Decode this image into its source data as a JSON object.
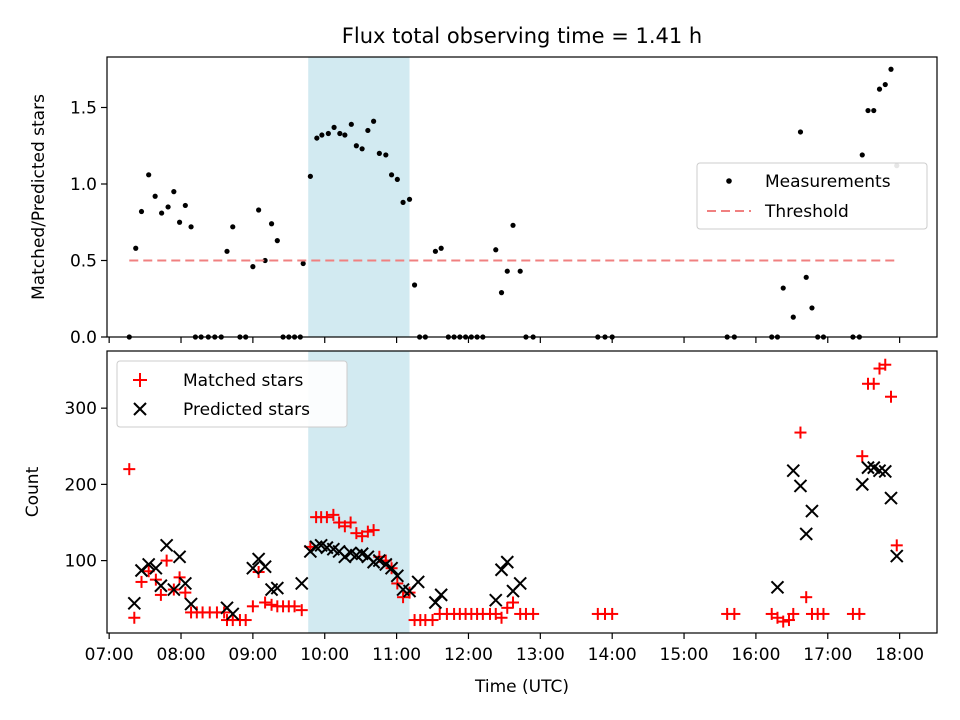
{
  "figure": {
    "title": "Flux total observing time = 1.41 h",
    "xlabel": "Time (UTC)",
    "xticks": [
      "07:00",
      "08:00",
      "09:00",
      "10:00",
      "11:00",
      "12:00",
      "13:00",
      "14:00",
      "15:00",
      "16:00",
      "17:00",
      "18:00"
    ],
    "highlight_span_hours": [
      9.77,
      11.18
    ],
    "highlight_color": "#add8e6"
  },
  "chart_data": [
    {
      "type": "scatter",
      "ylabel": "Matched/Predicted stars",
      "ylim": [
        0,
        1.83
      ],
      "yticks": [
        0.0,
        0.5,
        1.0,
        1.5
      ],
      "xlim_hours": [
        6.97,
        18.52
      ],
      "legend_placement": "center-right",
      "series": [
        {
          "name": "Measurements",
          "color": "#000000",
          "marker": "dot",
          "points": [
            [
              7.28,
              0.0
            ],
            [
              7.37,
              0.58
            ],
            [
              7.45,
              0.82
            ],
            [
              7.55,
              1.06
            ],
            [
              7.64,
              0.92
            ],
            [
              7.73,
              0.81
            ],
            [
              7.82,
              0.85
            ],
            [
              7.9,
              0.95
            ],
            [
              7.98,
              0.75
            ],
            [
              8.06,
              0.86
            ],
            [
              8.14,
              0.72
            ],
            [
              8.2,
              0.0
            ],
            [
              8.28,
              0.0
            ],
            [
              8.38,
              0.0
            ],
            [
              8.47,
              0.0
            ],
            [
              8.56,
              0.0
            ],
            [
              8.64,
              0.56
            ],
            [
              8.72,
              0.72
            ],
            [
              8.82,
              0.0
            ],
            [
              8.9,
              0.0
            ],
            [
              9.0,
              0.46
            ],
            [
              9.08,
              0.83
            ],
            [
              9.17,
              0.5
            ],
            [
              9.26,
              0.74
            ],
            [
              9.34,
              0.63
            ],
            [
              9.42,
              0.0
            ],
            [
              9.5,
              0.0
            ],
            [
              9.58,
              0.0
            ],
            [
              9.66,
              0.0
            ],
            [
              9.7,
              0.48
            ],
            [
              9.8,
              1.05
            ],
            [
              9.89,
              1.3
            ],
            [
              9.96,
              1.32
            ],
            [
              10.05,
              1.33
            ],
            [
              10.13,
              1.37
            ],
            [
              10.21,
              1.33
            ],
            [
              10.28,
              1.32
            ],
            [
              10.37,
              1.39
            ],
            [
              10.44,
              1.25
            ],
            [
              10.52,
              1.23
            ],
            [
              10.6,
              1.35
            ],
            [
              10.68,
              1.41
            ],
            [
              10.76,
              1.2
            ],
            [
              10.85,
              1.19
            ],
            [
              10.93,
              1.06
            ],
            [
              11.01,
              1.03
            ],
            [
              11.09,
              0.88
            ],
            [
              11.18,
              0.9
            ],
            [
              11.25,
              0.34
            ],
            [
              11.32,
              0.0
            ],
            [
              11.4,
              0.0
            ],
            [
              11.54,
              0.56
            ],
            [
              11.62,
              0.58
            ],
            [
              11.72,
              0.0
            ],
            [
              11.8,
              0.0
            ],
            [
              11.88,
              0.0
            ],
            [
              11.96,
              0.0
            ],
            [
              12.04,
              0.0
            ],
            [
              12.12,
              0.0
            ],
            [
              12.2,
              0.0
            ],
            [
              12.38,
              0.57
            ],
            [
              12.46,
              0.29
            ],
            [
              12.54,
              0.43
            ],
            [
              12.62,
              0.73
            ],
            [
              12.72,
              0.43
            ],
            [
              12.8,
              0.0
            ],
            [
              12.9,
              0.0
            ],
            [
              13.8,
              0.0
            ],
            [
              13.9,
              0.0
            ],
            [
              14.0,
              0.0
            ],
            [
              15.6,
              0.0
            ],
            [
              15.7,
              0.0
            ],
            [
              16.22,
              0.0
            ],
            [
              16.3,
              0.0
            ],
            [
              16.38,
              0.32
            ],
            [
              16.52,
              0.13
            ],
            [
              16.62,
              1.34
            ],
            [
              16.7,
              0.39
            ],
            [
              16.78,
              0.19
            ],
            [
              16.86,
              0.0
            ],
            [
              16.94,
              0.0
            ],
            [
              17.35,
              0.0
            ],
            [
              17.44,
              0.0
            ],
            [
              17.48,
              1.19
            ],
            [
              17.56,
              1.48
            ],
            [
              17.64,
              1.48
            ],
            [
              17.72,
              1.62
            ],
            [
              17.8,
              1.65
            ],
            [
              17.88,
              1.75
            ],
            [
              17.96,
              1.12
            ]
          ]
        },
        {
          "name": "Threshold",
          "color": "#f08080",
          "line": "dashed",
          "points": [
            [
              7.28,
              0.5
            ],
            [
              17.96,
              0.5
            ]
          ]
        }
      ]
    },
    {
      "type": "scatter",
      "ylabel": "Count",
      "ylim": [
        5,
        375
      ],
      "yticks": [
        100,
        200,
        300
      ],
      "xlim_hours": [
        6.97,
        18.52
      ],
      "legend_placement": "upper-left",
      "series": [
        {
          "name": "Matched stars",
          "color": "#ff0000",
          "marker": "plus",
          "points": [
            [
              7.28,
              220
            ],
            [
              7.35,
              25
            ],
            [
              7.45,
              72
            ],
            [
              7.55,
              86
            ],
            [
              7.65,
              75
            ],
            [
              7.72,
              55
            ],
            [
              7.8,
              100
            ],
            [
              7.9,
              62
            ],
            [
              7.98,
              78
            ],
            [
              8.06,
              58
            ],
            [
              8.14,
              32
            ],
            [
              8.22,
              32
            ],
            [
              8.3,
              32
            ],
            [
              8.4,
              32
            ],
            [
              8.5,
              32
            ],
            [
              8.6,
              32
            ],
            [
              8.64,
              22
            ],
            [
              8.72,
              22
            ],
            [
              8.82,
              22
            ],
            [
              8.9,
              22
            ],
            [
              9.0,
              40
            ],
            [
              9.08,
              85
            ],
            [
              9.17,
              45
            ],
            [
              9.26,
              42
            ],
            [
              9.34,
              40
            ],
            [
              9.42,
              40
            ],
            [
              9.5,
              40
            ],
            [
              9.58,
              40
            ],
            [
              9.68,
              35
            ],
            [
              9.8,
              118
            ],
            [
              9.88,
              157
            ],
            [
              9.95,
              157
            ],
            [
              10.03,
              157
            ],
            [
              10.12,
              160
            ],
            [
              10.2,
              150
            ],
            [
              10.28,
              145
            ],
            [
              10.36,
              150
            ],
            [
              10.44,
              136
            ],
            [
              10.52,
              132
            ],
            [
              10.6,
              138
            ],
            [
              10.68,
              140
            ],
            [
              10.76,
              105
            ],
            [
              10.85,
              100
            ],
            [
              10.93,
              90
            ],
            [
              11.01,
              70
            ],
            [
              11.09,
              52
            ],
            [
              11.18,
              58
            ],
            [
              11.25,
              22
            ],
            [
              11.33,
              22
            ],
            [
              11.4,
              22
            ],
            [
              11.5,
              22
            ],
            [
              11.6,
              30
            ],
            [
              11.7,
              30
            ],
            [
              11.8,
              30
            ],
            [
              11.88,
              30
            ],
            [
              11.96,
              30
            ],
            [
              12.04,
              30
            ],
            [
              12.12,
              30
            ],
            [
              12.2,
              30
            ],
            [
              12.3,
              30
            ],
            [
              12.38,
              30
            ],
            [
              12.46,
              25
            ],
            [
              12.54,
              38
            ],
            [
              12.62,
              45
            ],
            [
              12.72,
              30
            ],
            [
              12.8,
              30
            ],
            [
              12.9,
              30
            ],
            [
              13.8,
              30
            ],
            [
              13.9,
              30
            ],
            [
              14.0,
              30
            ],
            [
              15.6,
              30
            ],
            [
              15.7,
              30
            ],
            [
              16.22,
              30
            ],
            [
              16.3,
              25
            ],
            [
              16.38,
              20
            ],
            [
              16.46,
              22
            ],
            [
              16.52,
              30
            ],
            [
              16.62,
              268
            ],
            [
              16.7,
              52
            ],
            [
              16.78,
              30
            ],
            [
              16.86,
              30
            ],
            [
              16.94,
              30
            ],
            [
              17.35,
              30
            ],
            [
              17.44,
              30
            ],
            [
              17.48,
              237
            ],
            [
              17.56,
              332
            ],
            [
              17.64,
              332
            ],
            [
              17.72,
              352
            ],
            [
              17.8,
              357
            ],
            [
              17.88,
              315
            ],
            [
              17.96,
              120
            ]
          ]
        },
        {
          "name": "Predicted stars",
          "color": "#000000",
          "marker": "x",
          "points": [
            [
              7.35,
              44
            ],
            [
              7.45,
              87
            ],
            [
              7.55,
              95
            ],
            [
              7.65,
              90
            ],
            [
              7.72,
              67
            ],
            [
              7.8,
              120
            ],
            [
              7.9,
              62
            ],
            [
              7.98,
              105
            ],
            [
              8.06,
              70
            ],
            [
              8.14,
              43
            ],
            [
              8.64,
              38
            ],
            [
              8.72,
              30
            ],
            [
              9.0,
              90
            ],
            [
              9.08,
              102
            ],
            [
              9.17,
              92
            ],
            [
              9.26,
              62
            ],
            [
              9.34,
              64
            ],
            [
              9.68,
              70
            ],
            [
              9.8,
              112
            ],
            [
              9.88,
              118
            ],
            [
              9.95,
              120
            ],
            [
              10.03,
              117
            ],
            [
              10.12,
              115
            ],
            [
              10.2,
              112
            ],
            [
              10.28,
              105
            ],
            [
              10.36,
              110
            ],
            [
              10.44,
              107
            ],
            [
              10.52,
              109
            ],
            [
              10.6,
              105
            ],
            [
              10.68,
              98
            ],
            [
              10.76,
              100
            ],
            [
              10.85,
              95
            ],
            [
              10.93,
              90
            ],
            [
              11.01,
              80
            ],
            [
              11.09,
              62
            ],
            [
              11.18,
              60
            ],
            [
              11.3,
              72
            ],
            [
              11.54,
              45
            ],
            [
              11.62,
              55
            ],
            [
              12.38,
              48
            ],
            [
              12.46,
              88
            ],
            [
              12.54,
              98
            ],
            [
              12.62,
              60
            ],
            [
              12.72,
              70
            ],
            [
              16.3,
              65
            ],
            [
              16.52,
              218
            ],
            [
              16.62,
              198
            ],
            [
              16.7,
              135
            ],
            [
              16.78,
              165
            ],
            [
              17.48,
              200
            ],
            [
              17.56,
              222
            ],
            [
              17.64,
              222
            ],
            [
              17.72,
              218
            ],
            [
              17.8,
              217
            ],
            [
              17.88,
              182
            ],
            [
              17.96,
              106
            ]
          ]
        }
      ]
    }
  ]
}
